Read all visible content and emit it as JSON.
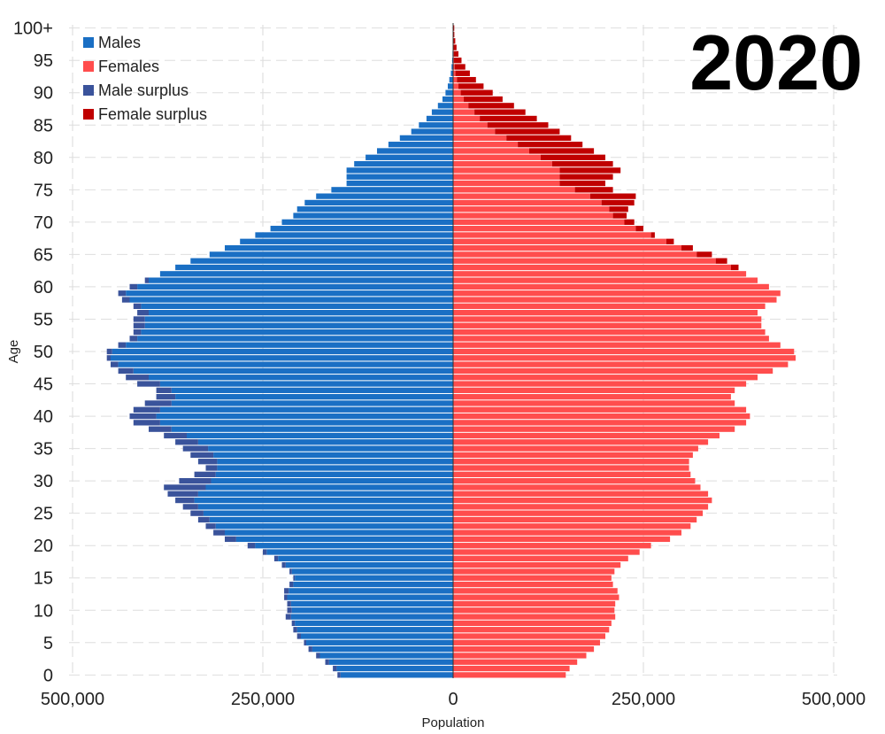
{
  "chart_data": {
    "type": "bar",
    "orientation": "horizontal-pyramid",
    "title": "",
    "annotation": "2020",
    "xlabel": "Population",
    "ylabel": "Age",
    "xlim": [
      -500000,
      500000
    ],
    "ylim": [
      0,
      100
    ],
    "x_ticks": [
      {
        "value": -500000,
        "label": "500,000"
      },
      {
        "value": -250000,
        "label": "250,000"
      },
      {
        "value": 0,
        "label": "0"
      },
      {
        "value": 250000,
        "label": "250,000"
      },
      {
        "value": 500000,
        "label": "500,000"
      }
    ],
    "y_ticks": [
      {
        "value": 0,
        "label": "0"
      },
      {
        "value": 5,
        "label": "5"
      },
      {
        "value": 10,
        "label": "10"
      },
      {
        "value": 15,
        "label": "15"
      },
      {
        "value": 20,
        "label": "20"
      },
      {
        "value": 25,
        "label": "25"
      },
      {
        "value": 30,
        "label": "30"
      },
      {
        "value": 35,
        "label": "35"
      },
      {
        "value": 40,
        "label": "40"
      },
      {
        "value": 45,
        "label": "45"
      },
      {
        "value": 50,
        "label": "50"
      },
      {
        "value": 55,
        "label": "55"
      },
      {
        "value": 60,
        "label": "60"
      },
      {
        "value": 65,
        "label": "65"
      },
      {
        "value": 70,
        "label": "70"
      },
      {
        "value": 75,
        "label": "75"
      },
      {
        "value": 80,
        "label": "80"
      },
      {
        "value": 85,
        "label": "85"
      },
      {
        "value": 90,
        "label": "90"
      },
      {
        "value": 95,
        "label": "95"
      },
      {
        "value": 100,
        "label": "100+"
      }
    ],
    "grid": true,
    "legend_position": "top-left",
    "legend": [
      {
        "label": "Males",
        "color": "#1a6fc4"
      },
      {
        "label": "Females",
        "color": "#ff4d4d"
      },
      {
        "label": "Male surplus",
        "color": "#3a539b"
      },
      {
        "label": "Female surplus",
        "color": "#c00000"
      }
    ],
    "colors": {
      "males": "#1a6fc4",
      "females": "#ff4d4d",
      "male_surplus": "#3a539b",
      "female_surplus": "#c00000"
    },
    "ages": [
      0,
      1,
      2,
      3,
      4,
      5,
      6,
      7,
      8,
      9,
      10,
      11,
      12,
      13,
      14,
      15,
      16,
      17,
      18,
      19,
      20,
      21,
      22,
      23,
      24,
      25,
      26,
      27,
      28,
      29,
      30,
      31,
      32,
      33,
      34,
      35,
      36,
      37,
      38,
      39,
      40,
      41,
      42,
      43,
      44,
      45,
      46,
      47,
      48,
      49,
      50,
      51,
      52,
      53,
      54,
      55,
      56,
      57,
      58,
      59,
      60,
      61,
      62,
      63,
      64,
      65,
      66,
      67,
      68,
      69,
      70,
      71,
      72,
      73,
      74,
      75,
      76,
      77,
      78,
      79,
      80,
      81,
      82,
      83,
      84,
      85,
      86,
      87,
      88,
      89,
      90,
      91,
      92,
      93,
      94,
      95,
      96,
      97,
      98,
      99,
      100
    ],
    "males": [
      152000,
      158000,
      168000,
      180000,
      190000,
      196000,
      205000,
      210000,
      212000,
      220000,
      218000,
      218000,
      222000,
      222000,
      215000,
      210000,
      215000,
      225000,
      235000,
      250000,
      270000,
      300000,
      315000,
      325000,
      335000,
      345000,
      355000,
      365000,
      375000,
      380000,
      360000,
      340000,
      325000,
      335000,
      345000,
      355000,
      365000,
      380000,
      400000,
      420000,
      425000,
      420000,
      405000,
      390000,
      390000,
      415000,
      430000,
      440000,
      450000,
      455000,
      455000,
      440000,
      425000,
      420000,
      420000,
      420000,
      415000,
      420000,
      435000,
      440000,
      425000,
      405000,
      385000,
      365000,
      345000,
      320000,
      300000,
      280000,
      260000,
      240000,
      225000,
      210000,
      205000,
      195000,
      180000,
      160000,
      140000,
      140000,
      140000,
      130000,
      115000,
      100000,
      85000,
      70000,
      55000,
      45000,
      35000,
      28000,
      20000,
      14000,
      10000,
      7000,
      5000,
      3000,
      2000,
      1200,
      800,
      500,
      300,
      150,
      100
    ],
    "females": [
      148000,
      153000,
      163000,
      175000,
      185000,
      193000,
      200000,
      205000,
      208000,
      213000,
      212000,
      213000,
      218000,
      216000,
      210000,
      208000,
      212000,
      220000,
      230000,
      245000,
      260000,
      285000,
      300000,
      312000,
      320000,
      328000,
      335000,
      340000,
      335000,
      325000,
      318000,
      312000,
      310000,
      310000,
      315000,
      322000,
      335000,
      350000,
      370000,
      385000,
      390000,
      385000,
      370000,
      365000,
      370000,
      385000,
      400000,
      420000,
      440000,
      450000,
      448000,
      430000,
      415000,
      410000,
      405000,
      405000,
      400000,
      410000,
      425000,
      430000,
      415000,
      400000,
      385000,
      375000,
      360000,
      340000,
      315000,
      290000,
      265000,
      250000,
      238000,
      228000,
      230000,
      238000,
      240000,
      210000,
      200000,
      210000,
      220000,
      210000,
      200000,
      185000,
      170000,
      155000,
      140000,
      125000,
      110000,
      95000,
      80000,
      65000,
      52000,
      40000,
      30000,
      22000,
      16000,
      11000,
      7000,
      4500,
      2800,
      1600,
      1500
    ]
  }
}
